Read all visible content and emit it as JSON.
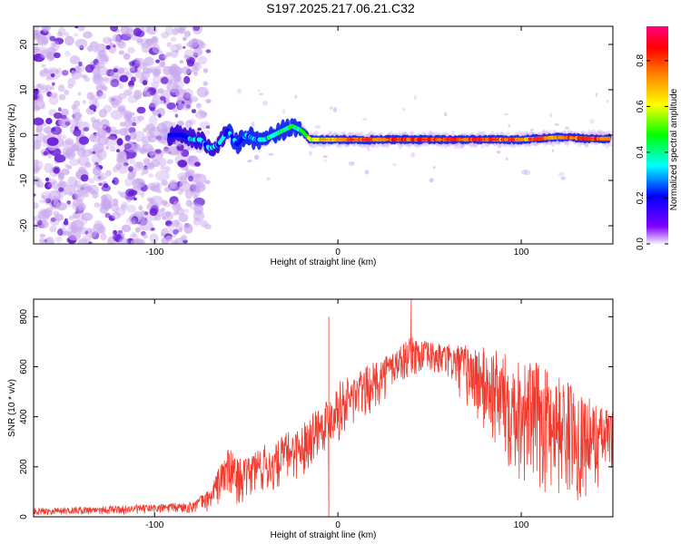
{
  "title": "S197.2025.217.06.21.C32",
  "colors": {
    "snr_line": "#f03a2e",
    "spectrogram_faint": "#c9a8ee",
    "spectrogram_strong": "#6a1fd6"
  },
  "chart_data": [
    {
      "type": "heatmap",
      "xlabel": "Height of straight line (km)",
      "ylabel": "Frequency (Hz)",
      "xlim": [
        -166,
        150
      ],
      "ylim": [
        -24,
        24
      ],
      "xticks": [
        -100,
        0,
        100
      ],
      "yticks": [
        -20,
        -10,
        0,
        10,
        20
      ],
      "grid": false,
      "colorbar": {
        "label": "Normalized spectral amplitude",
        "range": [
          0,
          0.95
        ],
        "ticks": [
          0.0,
          0.2,
          0.4,
          0.6,
          0.8
        ],
        "colormap": [
          "#ff0080",
          "#ff0000",
          "#ff8000",
          "#ffff00",
          "#00ff00",
          "#00ffff",
          "#0000ff",
          "#8000ff",
          "#f4eeff"
        ]
      },
      "features": {
        "noise_region_x": [
          -166,
          -80
        ],
        "signal_trace": {
          "x": [
            -92,
            -85,
            -80,
            -75,
            -70,
            -65,
            -60,
            -55,
            -50,
            -45,
            -40,
            -35,
            -30,
            -25,
            -20,
            -15,
            -10,
            -5,
            0,
            20,
            40,
            60,
            80,
            100,
            120,
            140,
            148
          ],
          "freq": [
            0,
            0,
            -1,
            -1,
            -3,
            -2,
            1,
            -2,
            0,
            -1,
            -1,
            0,
            1,
            2,
            1,
            -1,
            -1,
            -1,
            -1,
            -1,
            -1,
            -1,
            -1,
            -1,
            -0.5,
            -0.8,
            -0.8
          ],
          "amplitude": [
            0.1,
            0.2,
            0.3,
            0.35,
            0.3,
            0.4,
            0.3,
            0.35,
            0.35,
            0.35,
            0.4,
            0.45,
            0.5,
            0.5,
            0.55,
            0.6,
            0.65,
            0.75,
            0.8,
            0.85,
            0.85,
            0.85,
            0.85,
            0.8,
            0.8,
            0.85,
            0.8
          ]
        }
      }
    },
    {
      "type": "line",
      "xlabel": "Height of straight line (km)",
      "ylabel": "SNR (10 * v/v)",
      "xlim": [
        -166,
        150
      ],
      "ylim": [
        0,
        870
      ],
      "xticks": [
        -100,
        0,
        100
      ],
      "yticks": [
        0,
        200,
        400,
        600,
        800
      ],
      "grid": false,
      "series": [
        {
          "envelope": {
            "x": [
              -166,
              -140,
              -120,
              -100,
              -90,
              -80,
              -70,
              -65,
              -60,
              -55,
              -50,
              -45,
              -40,
              -35,
              -30,
              -25,
              -20,
              -15,
              -10,
              -5,
              0,
              10,
              20,
              30,
              40,
              50,
              60,
              70,
              80,
              90,
              100,
              110,
              120,
              130,
              140,
              150
            ],
            "upper": [
              35,
              40,
              45,
              50,
              55,
              60,
              110,
              200,
              280,
              240,
              230,
              280,
              290,
              280,
              330,
              350,
              360,
              420,
              450,
              480,
              540,
              580,
              620,
              670,
              720,
              700,
              690,
              690,
              680,
              660,
              640,
              610,
              570,
              520,
              460,
              420
            ],
            "lower": [
              5,
              8,
              8,
              10,
              10,
              12,
              20,
              40,
              60,
              50,
              50,
              70,
              80,
              80,
              120,
              140,
              150,
              200,
              240,
              280,
              300,
              350,
              420,
              500,
              560,
              560,
              540,
              430,
              300,
              200,
              120,
              90,
              70,
              60,
              80,
              200
            ]
          },
          "spikes": [
            {
              "x": -5,
              "y": 800
            },
            {
              "x": -5,
              "y": 0
            },
            {
              "x": 40,
              "y": 870
            }
          ]
        }
      ]
    }
  ]
}
